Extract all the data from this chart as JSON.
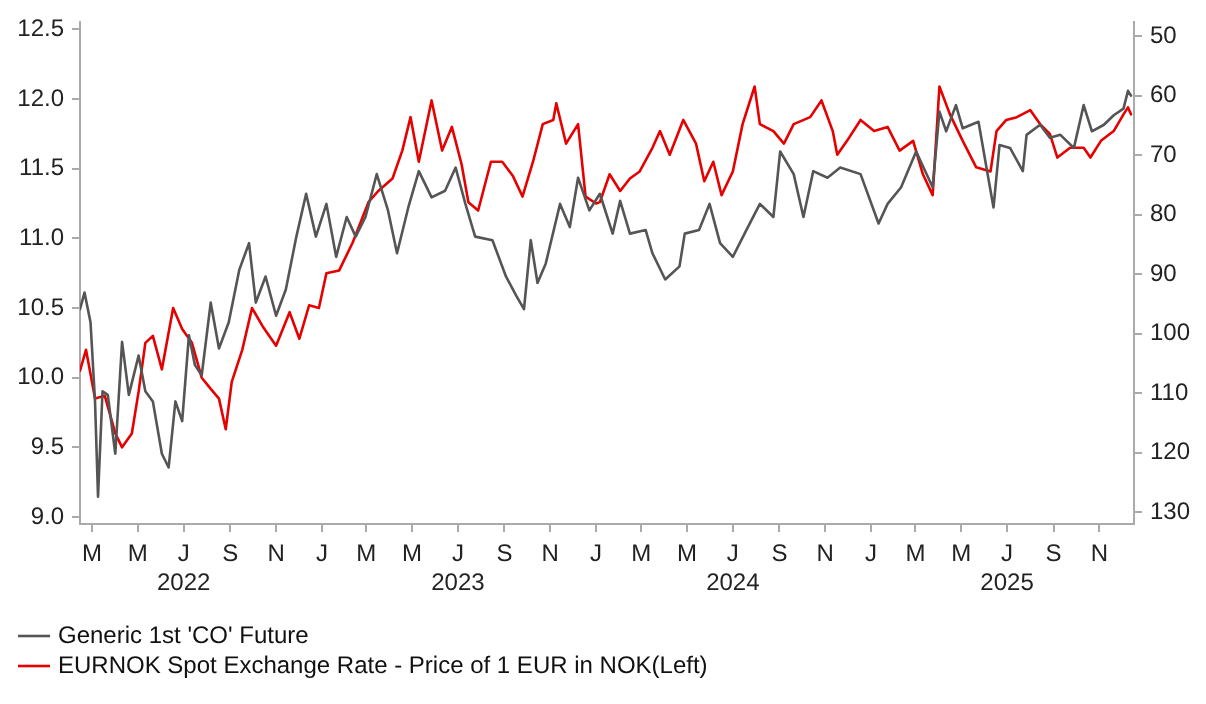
{
  "chart_data": {
    "type": "line",
    "series": [
      {
        "name": "Generic 1st 'CO' Future",
        "color": "#555555",
        "axis": "y2",
        "x": [
          "2022-02-13",
          "2022-02-19",
          "2022-02-27",
          "2022-03-05",
          "2022-03-09",
          "2022-03-15",
          "2022-03-22",
          "2022-04-01",
          "2022-04-10",
          "2022-04-19",
          "2022-05-02",
          "2022-05-11",
          "2022-05-21",
          "2022-06-02",
          "2022-06-11",
          "2022-06-20",
          "2022-06-29",
          "2022-07-08",
          "2022-07-16",
          "2022-07-25",
          "2022-08-06",
          "2022-08-17",
          "2022-08-30",
          "2022-09-13",
          "2022-09-26",
          "2022-10-05",
          "2022-10-18",
          "2022-11-01",
          "2022-11-14",
          "2022-11-28",
          "2022-12-11",
          "2022-12-24",
          "2023-01-07",
          "2023-01-20",
          "2023-02-03",
          "2023-02-15",
          "2023-02-28",
          "2023-03-15",
          "2023-03-30",
          "2023-04-11",
          "2023-04-26",
          "2023-05-10",
          "2023-05-27",
          "2023-06-14",
          "2023-06-28",
          "2023-07-11",
          "2023-07-24",
          "2023-08-16",
          "2023-09-03",
          "2023-09-17",
          "2023-09-27",
          "2023-10-06",
          "2023-10-15",
          "2023-10-26",
          "2023-11-14",
          "2023-11-27",
          "2023-12-08",
          "2023-12-23",
          "2024-01-06",
          "2024-01-23",
          "2024-02-02",
          "2024-02-15",
          "2024-03-07",
          "2024-03-16",
          "2024-04-02",
          "2024-04-21",
          "2024-04-28",
          "2024-05-17",
          "2024-05-31",
          "2024-06-14",
          "2024-07-01",
          "2024-07-19",
          "2024-08-06",
          "2024-08-24",
          "2024-09-02",
          "2024-09-20",
          "2024-10-03",
          "2024-10-16",
          "2024-11-04",
          "2024-11-21",
          "2024-12-18",
          "2025-01-11",
          "2025-01-23",
          "2025-02-10",
          "2025-03-02",
          "2025-03-24",
          "2025-04-02",
          "2025-04-11",
          "2025-04-24",
          "2025-05-03",
          "2025-05-24",
          "2025-06-06",
          "2025-06-13",
          "2025-06-21",
          "2025-07-05",
          "2025-07-22",
          "2025-07-27",
          "2025-08-14",
          "2025-08-27",
          "2025-09-10",
          "2025-09-28",
          "2025-10-11",
          "2025-10-22",
          "2025-11-07",
          "2025-11-20",
          "2025-12-03",
          "2025-12-09",
          "2025-12-13"
        ],
        "values": [
          95.9,
          93.1,
          98.1,
          111.4,
          127.4,
          109.7,
          110.3,
          120.2,
          101.4,
          110.3,
          103.7,
          109.7,
          111.4,
          120.2,
          122.5,
          111.4,
          114.7,
          100.3,
          105.3,
          107.0,
          94.8,
          102.5,
          98.1,
          89.3,
          84.8,
          94.8,
          90.4,
          97.0,
          92.6,
          83.7,
          76.5,
          83.7,
          78.2,
          87.1,
          80.4,
          83.7,
          80.4,
          73.2,
          79.3,
          86.5,
          78.8,
          72.7,
          77.1,
          76.0,
          72.1,
          78.2,
          83.7,
          84.3,
          90.4,
          93.7,
          95.9,
          84.3,
          91.5,
          88.2,
          78.2,
          82.1,
          73.8,
          79.3,
          76.5,
          83.2,
          77.7,
          83.2,
          82.6,
          86.5,
          90.9,
          88.7,
          83.2,
          82.6,
          78.2,
          84.8,
          87.1,
          82.6,
          78.2,
          80.4,
          69.4,
          73.2,
          80.4,
          72.7,
          73.8,
          72.1,
          73.2,
          81.5,
          78.2,
          75.4,
          69.4,
          75.4,
          62.7,
          66.0,
          61.6,
          65.5,
          64.4,
          73.8,
          78.8,
          68.3,
          68.8,
          72.7,
          66.6,
          64.9,
          67.1,
          66.6,
          68.8,
          61.6,
          66.0,
          64.9,
          63.3,
          62.2,
          59.2,
          60.0
        ]
      },
      {
        "name": "EURNOK Spot Exchange Rate - Price of 1 EUR in NOK(Left)",
        "color": "#e60000",
        "x": [
          "2022-02-13",
          "2022-02-21",
          "2022-03-05",
          "2022-03-18",
          "2022-04-01",
          "2022-04-10",
          "2022-04-23",
          "2022-05-02",
          "2022-05-11",
          "2022-05-21",
          "2022-06-02",
          "2022-06-17",
          "2022-06-29",
          "2022-07-12",
          "2022-07-25",
          "2022-08-06",
          "2022-08-17",
          "2022-08-26",
          "2022-09-03",
          "2022-09-17",
          "2022-09-30",
          "2022-10-14",
          "2022-11-01",
          "2022-11-19",
          "2022-12-02",
          "2022-12-15",
          "2022-12-28",
          "2023-01-07",
          "2023-01-24",
          "2023-02-11",
          "2023-03-04",
          "2023-03-17",
          "2023-04-05",
          "2023-04-18",
          "2023-04-29",
          "2023-05-10",
          "2023-05-27",
          "2023-06-10",
          "2023-06-23",
          "2023-07-06",
          "2023-07-15",
          "2023-07-28",
          "2023-08-14",
          "2023-08-29",
          "2023-09-12",
          "2023-09-25",
          "2023-10-09",
          "2023-10-22",
          "2023-11-05",
          "2023-11-09",
          "2023-11-22",
          "2023-12-08",
          "2023-12-18",
          "2024-01-01",
          "2024-01-06",
          "2024-01-19",
          "2024-02-02",
          "2024-02-15",
          "2024-02-28",
          "2024-03-16",
          "2024-03-26",
          "2024-04-08",
          "2024-04-26",
          "2024-05-13",
          "2024-05-24",
          "2024-06-05",
          "2024-06-16",
          "2024-07-01",
          "2024-07-14",
          "2024-07-30",
          "2024-08-06",
          "2024-08-24",
          "2024-09-07",
          "2024-09-20",
          "2024-10-12",
          "2024-10-27",
          "2024-11-11",
          "2024-11-17",
          "2024-11-30",
          "2024-12-18",
          "2025-01-05",
          "2025-01-23",
          "2025-02-08",
          "2025-02-26",
          "2025-03-11",
          "2025-03-24",
          "2025-04-02",
          "2025-04-16",
          "2025-05-03",
          "2025-05-21",
          "2025-06-09",
          "2025-06-17",
          "2025-06-30",
          "2025-07-14",
          "2025-08-01",
          "2025-08-14",
          "2025-08-27",
          "2025-09-06",
          "2025-09-23",
          "2025-10-11",
          "2025-10-20",
          "2025-11-03",
          "2025-11-20",
          "2025-12-03",
          "2025-12-09",
          "2025-12-13"
        ],
        "values": [
          10.05,
          10.2,
          9.85,
          9.87,
          9.6,
          9.5,
          9.6,
          9.9,
          10.25,
          10.3,
          10.06,
          10.5,
          10.35,
          10.25,
          10.0,
          9.92,
          9.85,
          9.63,
          9.97,
          10.2,
          10.5,
          10.37,
          10.23,
          10.47,
          10.28,
          10.52,
          10.5,
          10.75,
          10.77,
          10.97,
          11.26,
          11.34,
          11.43,
          11.63,
          11.87,
          11.55,
          11.99,
          11.63,
          11.8,
          11.53,
          11.26,
          11.2,
          11.55,
          11.55,
          11.45,
          11.3,
          11.55,
          11.82,
          11.85,
          11.97,
          11.68,
          11.82,
          11.3,
          11.25,
          11.26,
          11.46,
          11.34,
          11.43,
          11.48,
          11.65,
          11.77,
          11.6,
          11.85,
          11.68,
          11.41,
          11.55,
          11.31,
          11.48,
          11.82,
          12.09,
          11.82,
          11.77,
          11.68,
          11.82,
          11.87,
          11.99,
          11.77,
          11.6,
          11.7,
          11.85,
          11.77,
          11.8,
          11.63,
          11.7,
          11.46,
          11.31,
          12.09,
          11.89,
          11.7,
          11.51,
          11.48,
          11.77,
          11.85,
          11.87,
          11.92,
          11.82,
          11.75,
          11.58,
          11.65,
          11.65,
          11.58,
          11.7,
          11.77,
          11.89,
          11.94,
          11.89
        ]
      }
    ],
    "xlim": [
      "2022-02-13",
      "2025-12-17"
    ],
    "xticks": [
      {
        "value": "2022-03-01",
        "label": "M"
      },
      {
        "value": "2022-05-01",
        "label": "M"
      },
      {
        "value": "2022-07-01",
        "label": "J\n2022"
      },
      {
        "value": "2022-09-01",
        "label": "S"
      },
      {
        "value": "2022-11-01",
        "label": "N"
      },
      {
        "value": "2023-01-01",
        "label": "J"
      },
      {
        "value": "2023-03-01",
        "label": "M"
      },
      {
        "value": "2023-05-01",
        "label": "M"
      },
      {
        "value": "2023-07-01",
        "label": "J\n2023"
      },
      {
        "value": "2023-09-01",
        "label": "S"
      },
      {
        "value": "2023-11-01",
        "label": "N"
      },
      {
        "value": "2024-01-01",
        "label": "J"
      },
      {
        "value": "2024-03-01",
        "label": "M"
      },
      {
        "value": "2024-05-01",
        "label": "M"
      },
      {
        "value": "2024-07-01",
        "label": "J\n2024"
      },
      {
        "value": "2024-09-01",
        "label": "S"
      },
      {
        "value": "2024-11-01",
        "label": "N"
      },
      {
        "value": "2025-01-01",
        "label": "J"
      },
      {
        "value": "2025-03-01",
        "label": "M"
      },
      {
        "value": "2025-05-01",
        "label": "M"
      },
      {
        "value": "2025-07-01",
        "label": "J\n2025"
      },
      {
        "value": "2025-09-01",
        "label": "S"
      },
      {
        "value": "2025-11-01",
        "label": "N"
      }
    ],
    "ylim": [
      8.95,
      12.55
    ],
    "yticks": [
      {
        "value": 9,
        "label": "9.0"
      },
      {
        "value": 9.5,
        "label": "9.5"
      },
      {
        "value": 10,
        "label": "10.0"
      },
      {
        "value": 10.5,
        "label": "10.5"
      },
      {
        "value": 11,
        "label": "11.0"
      },
      {
        "value": 11.5,
        "label": "11.5"
      },
      {
        "value": 12,
        "label": "12.0"
      },
      {
        "value": 12.5,
        "label": "12.5"
      }
    ],
    "y2lim": [
      132,
      47.7
    ],
    "y2ticks": [
      50,
      60,
      70,
      80,
      90,
      100,
      110,
      120,
      130
    ],
    "grid": false,
    "legend": "bottom",
    "marker": "none",
    "line_style": "solid"
  }
}
